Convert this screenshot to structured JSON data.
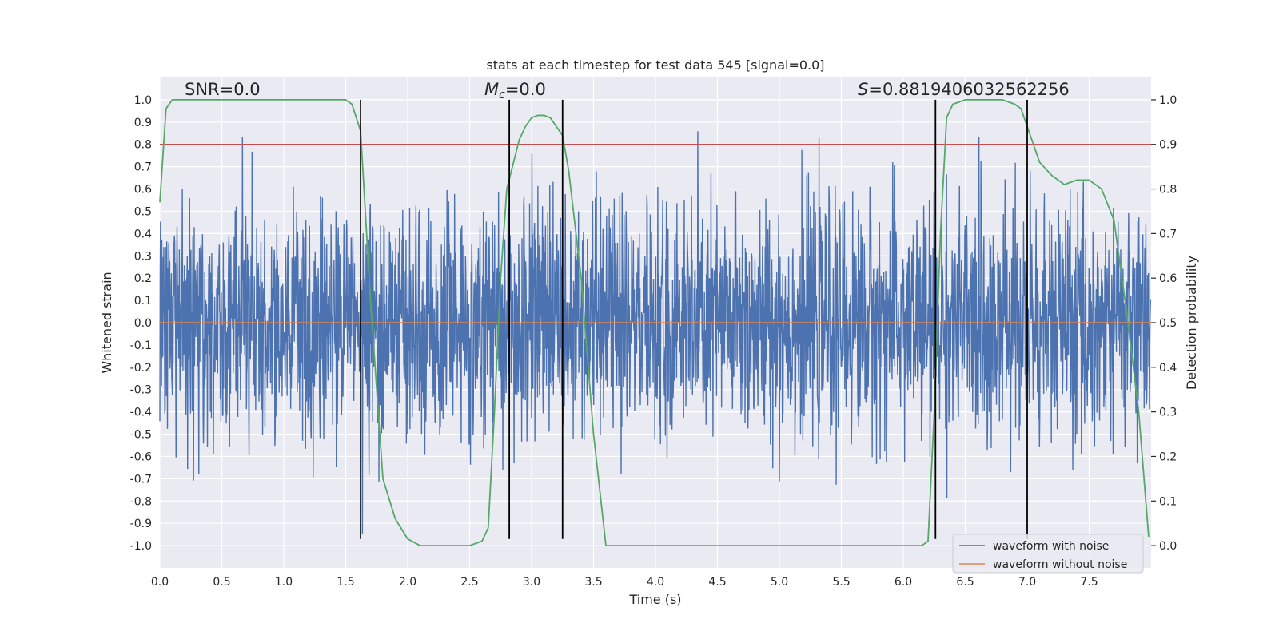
{
  "chart_data": {
    "type": "line",
    "title": "stats at each timestep for test data 545 [signal=0.0]",
    "xlabel": "Time (s)",
    "ylabel": "Whitened strain",
    "y2label": "Detection probability",
    "xlim": [
      0.0,
      8.0
    ],
    "ylim": [
      -1.1,
      1.1
    ],
    "y2lim": [
      -0.05,
      1.05
    ],
    "grid": true,
    "x_ticks": [
      0.0,
      0.5,
      1.0,
      1.5,
      2.0,
      2.5,
      3.0,
      3.5,
      4.0,
      4.5,
      5.0,
      5.5,
      6.0,
      6.5,
      7.0,
      7.5
    ],
    "x_tick_labels": [
      "0.0",
      "0.5",
      "1.0",
      "1.5",
      "2.0",
      "2.5",
      "3.0",
      "3.5",
      "4.0",
      "4.5",
      "5.0",
      "5.5",
      "6.0",
      "6.5",
      "7.0",
      "7.5"
    ],
    "y_ticks": [
      1.0,
      0.9,
      0.8,
      0.7,
      0.6,
      0.5,
      0.4,
      0.3,
      0.2,
      0.1,
      0.0,
      -0.1,
      -0.2,
      -0.3,
      -0.4,
      -0.5,
      -0.6,
      -0.7,
      -0.8,
      -0.9,
      -1.0
    ],
    "y_tick_labels": [
      "1.0",
      "0.9",
      "0.8",
      "0.7",
      "0.6",
      "0.5",
      "0.4",
      "0.3",
      "0.2",
      "0.1",
      "0.0",
      "-0.1",
      "-0.2",
      "-0.3",
      "-0.4",
      "-0.5",
      "-0.6",
      "-0.7",
      "-0.8",
      "-0.9",
      "-1.0"
    ],
    "y2_ticks": [
      1.0,
      0.9,
      0.8,
      0.7,
      0.6,
      0.5,
      0.4,
      0.3,
      0.2,
      0.1,
      0.0
    ],
    "y2_tick_labels": [
      "1.0",
      "0.9",
      "0.8",
      "0.7",
      "0.6",
      "0.5",
      "0.4",
      "0.3",
      "0.2",
      "0.1",
      "0.0"
    ],
    "annotations": {
      "snr": "SNR=0.0",
      "mc_symbol": "M",
      "mc_subscript": "c",
      "mc_value": "=0.0",
      "s_symbol": "S",
      "s_value": "=0.8819406032562256"
    },
    "threshold": {
      "y2": 0.9,
      "color": "#c44e52"
    },
    "vertical_lines": [
      1.62,
      2.82,
      3.25,
      6.26,
      7.0
    ],
    "legend": {
      "position": "lower-right",
      "entries": [
        {
          "label": "waveform with noise",
          "color": "#4c72b0"
        },
        {
          "label": "waveform without noise",
          "color": "#dd8452"
        }
      ]
    },
    "series": [
      {
        "name": "waveform with noise",
        "color": "#4c72b0",
        "kind": "noise",
        "duration": 8.0,
        "amplitude_range": [
          -0.97,
          0.86
        ]
      },
      {
        "name": "waveform without noise",
        "color": "#dd8452",
        "kind": "flat",
        "value": 0.0
      },
      {
        "kind": "probability",
        "axis": "y2",
        "color": "#55a868",
        "x": [
          0.0,
          0.05,
          0.1,
          0.2,
          0.5,
          1.0,
          1.4,
          1.5,
          1.55,
          1.62,
          1.7,
          1.8,
          1.9,
          2.0,
          2.1,
          2.2,
          2.5,
          2.6,
          2.65,
          2.7,
          2.75,
          2.8,
          2.9,
          2.95,
          3.0,
          3.05,
          3.1,
          3.15,
          3.2,
          3.25,
          3.3,
          3.4,
          3.5,
          3.6,
          4.0,
          5.0,
          6.0,
          6.15,
          6.2,
          6.25,
          6.3,
          6.35,
          6.4,
          6.5,
          6.8,
          6.9,
          6.95,
          7.0,
          7.1,
          7.2,
          7.3,
          7.4,
          7.45,
          7.5,
          7.6,
          7.7,
          7.8,
          7.9,
          7.98
        ],
        "y": [
          0.77,
          0.98,
          1.0,
          1.0,
          1.0,
          1.0,
          1.0,
          1.0,
          0.99,
          0.93,
          0.55,
          0.15,
          0.06,
          0.015,
          0.0,
          0.0,
          0.0,
          0.01,
          0.04,
          0.3,
          0.6,
          0.8,
          0.91,
          0.94,
          0.96,
          0.965,
          0.965,
          0.96,
          0.94,
          0.92,
          0.84,
          0.6,
          0.25,
          0.0,
          0.0,
          0.0,
          0.0,
          0.0,
          0.01,
          0.3,
          0.7,
          0.96,
          0.99,
          1.0,
          1.0,
          0.99,
          0.98,
          0.94,
          0.86,
          0.83,
          0.81,
          0.82,
          0.82,
          0.82,
          0.8,
          0.73,
          0.53,
          0.3,
          0.02
        ]
      }
    ]
  }
}
